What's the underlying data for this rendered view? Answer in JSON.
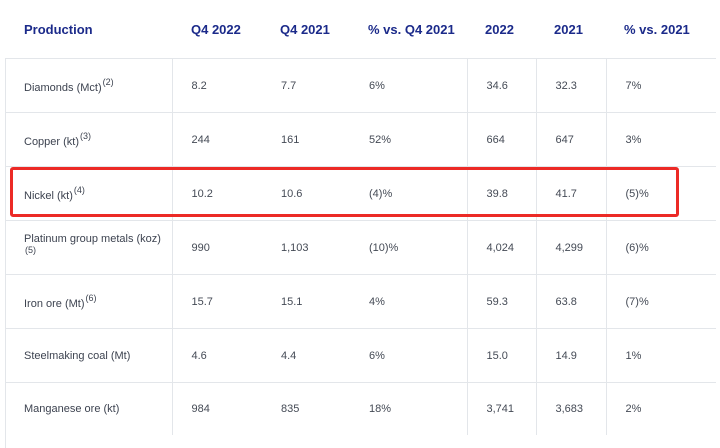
{
  "table": {
    "headers": [
      "Production",
      "Q4 2022",
      "Q4 2021",
      "% vs. Q4 2021",
      "2022",
      "2021",
      "% vs. 2021"
    ],
    "rows": [
      {
        "label": "Diamonds (Mct)",
        "note": "(2)",
        "values": [
          "8.2",
          "7.7",
          "6%",
          "34.6",
          "32.3",
          "7%"
        ]
      },
      {
        "label": "Copper (kt)",
        "note": "(3)",
        "values": [
          "244",
          "161",
          "52%",
          "664",
          "647",
          "3%"
        ]
      },
      {
        "label": "Nickel (kt)",
        "note": "(4)",
        "values": [
          "10.2",
          "10.6",
          "(4)%",
          "39.8",
          "41.7",
          "(5)%"
        ]
      },
      {
        "label": "Platinum group metals (koz)",
        "note": "(5)",
        "values": [
          "990",
          "1,103",
          "(10)%",
          "4,024",
          "4,299",
          "(6)%"
        ]
      },
      {
        "label": "Iron ore (Mt)",
        "note": "(6)",
        "values": [
          "15.7",
          "15.1",
          "4%",
          "59.3",
          "63.8",
          "(7)%"
        ]
      },
      {
        "label": "Steelmaking coal (Mt)",
        "note": "",
        "values": [
          "4.6",
          "4.4",
          "6%",
          "15.0",
          "14.9",
          "1%"
        ]
      },
      {
        "label": "Manganese ore (kt)",
        "note": "",
        "values": [
          "984",
          "835",
          "18%",
          "3,741",
          "3,683",
          "2%"
        ]
      }
    ]
  },
  "colors": {
    "header": "#1b2a8a",
    "highlight": "#ec2a26",
    "text": "#444a55",
    "grid": "#e3e6ea"
  }
}
